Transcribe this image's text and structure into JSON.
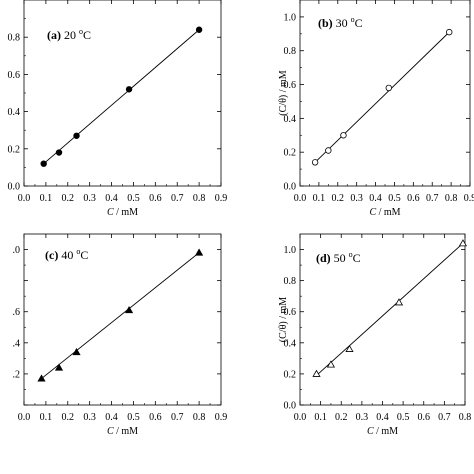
{
  "chart_data": [
    {
      "type": "scatter",
      "panel": "a",
      "title_tag": "(a)",
      "title_temp": "20",
      "title_unit": "C",
      "marker": "filled-circle",
      "xlabel_var": "C",
      "xlabel_unit": " / mM",
      "ylabel": "",
      "xlim": [
        0.0,
        0.9
      ],
      "ylim": [
        0.0,
        1.0
      ],
      "x_ticks": [
        "0.0",
        "0.1",
        "0.2",
        "0.3",
        "0.4",
        "0.5",
        "0.6",
        "0.7",
        "0.8",
        "0.9"
      ],
      "y_ticks": [
        "0.0",
        "0.2",
        "0.4",
        "0.6",
        "0.8"
      ],
      "x": [
        0.09,
        0.16,
        0.24,
        0.48,
        0.8
      ],
      "y": [
        0.12,
        0.18,
        0.27,
        0.52,
        0.84
      ],
      "fit_line": [
        [
          0.09,
          0.12
        ],
        [
          0.8,
          0.84
        ]
      ]
    },
    {
      "type": "scatter",
      "panel": "b",
      "title_tag": "(b)",
      "title_temp": "30",
      "title_unit": "C",
      "marker": "open-circle",
      "xlabel_var": "C",
      "xlabel_unit": " / mM",
      "ylabel": "(C/θ) / mM",
      "xlim": [
        0.0,
        0.9
      ],
      "ylim": [
        0.0,
        1.1
      ],
      "x_ticks": [
        "0.0",
        "0.1",
        "0.2",
        "0.3",
        "0.4",
        "0.5",
        "0.6",
        "0.7",
        "0.8",
        "0.9"
      ],
      "y_ticks": [
        "0.0",
        "0.2",
        "0.4",
        "0.6",
        "0.8",
        "1.0"
      ],
      "x": [
        0.08,
        0.15,
        0.23,
        0.47,
        0.79
      ],
      "y": [
        0.14,
        0.21,
        0.3,
        0.58,
        0.91
      ],
      "fit_line": [
        [
          0.08,
          0.14
        ],
        [
          0.79,
          0.91
        ]
      ]
    },
    {
      "type": "scatter",
      "panel": "c",
      "title_tag": "(c)",
      "title_temp": "40",
      "title_unit": "C",
      "marker": "filled-triangle",
      "xlabel_var": "C",
      "xlabel_unit": " / mM",
      "ylabel": "",
      "xlim": [
        0.0,
        0.9
      ],
      "ylim": [
        0.0,
        1.1
      ],
      "x_ticks": [
        "0.0",
        "0.1",
        "0.2",
        "0.3",
        "0.4",
        "0.5",
        "0.6",
        "0.7",
        "0.8",
        "0.9"
      ],
      "y_ticks": [
        "",
        ".2",
        ".4",
        ".6",
        "",
        ".0"
      ],
      "x": [
        0.08,
        0.16,
        0.24,
        0.48,
        0.8
      ],
      "y": [
        0.17,
        0.24,
        0.34,
        0.61,
        0.98
      ],
      "fit_line": [
        [
          0.08,
          0.17
        ],
        [
          0.8,
          0.98
        ]
      ]
    },
    {
      "type": "scatter",
      "panel": "d",
      "title_tag": "(d)",
      "title_temp": "50",
      "title_unit": "C",
      "marker": "open-triangle",
      "xlabel_var": "C",
      "xlabel_unit": " / mM",
      "ylabel": "(C/θ) / mM",
      "xlim": [
        0.0,
        0.8
      ],
      "ylim": [
        0.0,
        1.1
      ],
      "x_ticks": [
        "0.0",
        "0.1",
        "0.2",
        "0.3",
        "0.4",
        "0.5",
        "0.6",
        "0.7",
        "0.8"
      ],
      "y_ticks": [
        "0.0",
        "0.2",
        "0.4",
        "0.6",
        "0.8",
        "1.0"
      ],
      "x": [
        0.08,
        0.15,
        0.24,
        0.48,
        0.79
      ],
      "y": [
        0.2,
        0.26,
        0.36,
        0.66,
        1.04
      ],
      "fit_line": [
        [
          0.08,
          0.19
        ],
        [
          0.79,
          1.04
        ]
      ]
    }
  ]
}
